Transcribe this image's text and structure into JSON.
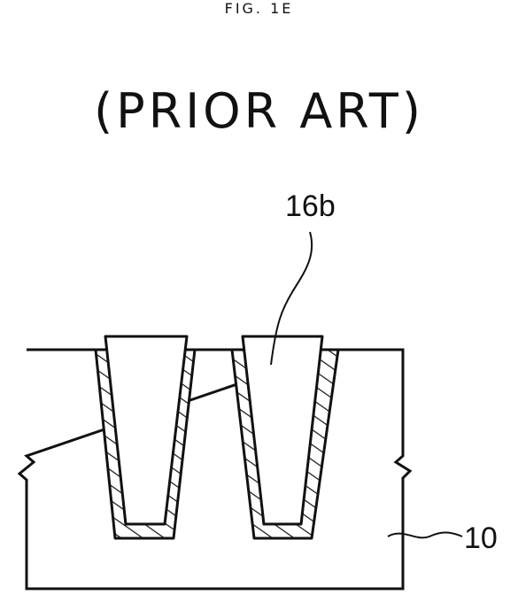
{
  "figure": {
    "title": "FIG. 1E",
    "subtitle": "(PRIOR ART)"
  },
  "labels": {
    "fill": "16b",
    "substrate": "10"
  },
  "colors": {
    "ink": "#111111",
    "background": "#ffffff"
  }
}
